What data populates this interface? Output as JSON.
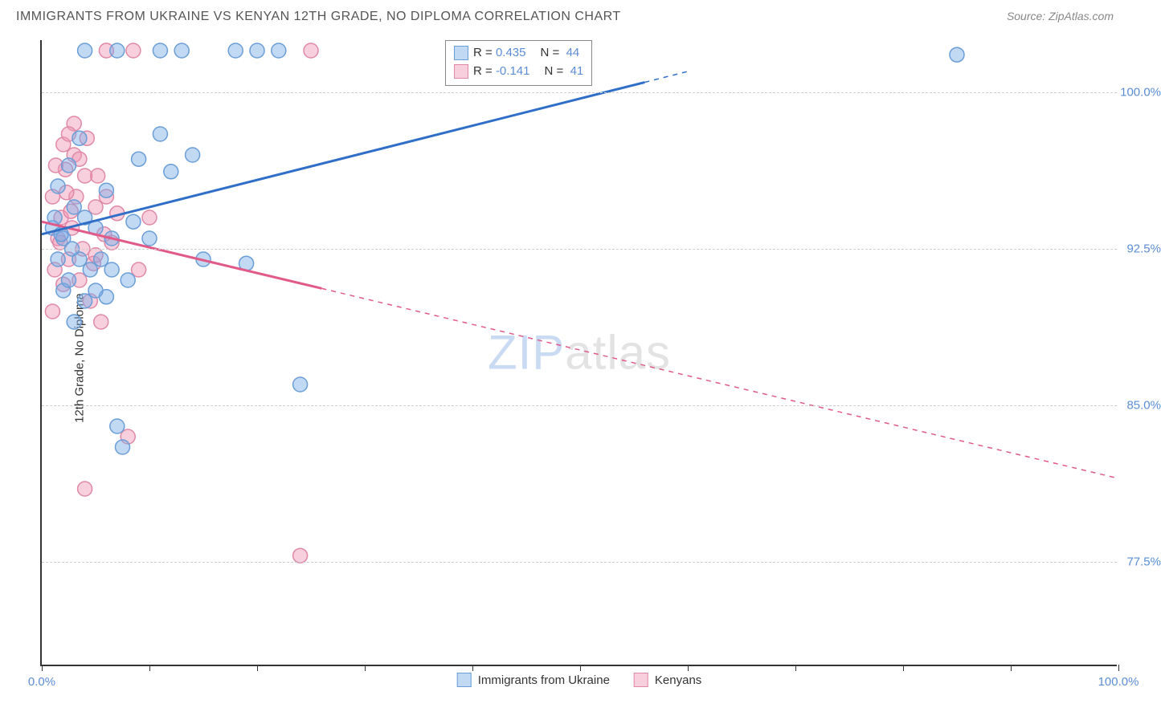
{
  "title": "IMMIGRANTS FROM UKRAINE VS KENYAN 12TH GRADE, NO DIPLOMA CORRELATION CHART",
  "source_label": "Source: ZipAtlas.com",
  "ylabel": "12th Grade, No Diploma",
  "watermark_a": "ZIP",
  "watermark_b": "atlas",
  "colors": {
    "ukraine_fill": "rgba(120,170,230,0.45)",
    "ukraine_stroke": "#6a9ed8",
    "ukraine_line": "#2f6fc7",
    "kenya_fill": "rgba(240,150,180,0.45)",
    "kenya_stroke": "#e088a8",
    "kenya_line": "#e05b88",
    "axis_label": "#5b8dd6",
    "grid": "#cccccc"
  },
  "x_axis": {
    "min": 0,
    "max": 100,
    "ticks": [
      0,
      10,
      20,
      30,
      40,
      50,
      60,
      70,
      80,
      90,
      100
    ],
    "labels": [
      {
        "v": 0,
        "text": "0.0%"
      },
      {
        "v": 100,
        "text": "100.0%"
      }
    ]
  },
  "y_axis": {
    "min": 72.5,
    "max": 102.5,
    "ticks": [
      {
        "v": 77.5,
        "text": "77.5%"
      },
      {
        "v": 85.0,
        "text": "85.0%"
      },
      {
        "v": 92.5,
        "text": "92.5%"
      },
      {
        "v": 100.0,
        "text": "100.0%"
      }
    ]
  },
  "series": {
    "ukraine": {
      "label": "Immigrants from Ukraine",
      "r": "0.435",
      "n": "44",
      "marker_radius": 9,
      "trend": {
        "x1": 0,
        "y1": 93.2,
        "x2": 60,
        "y2": 101.0,
        "solid_to_x": 56
      },
      "points": [
        [
          1.0,
          93.5
        ],
        [
          1.2,
          94.0
        ],
        [
          1.5,
          92.0
        ],
        [
          1.5,
          95.5
        ],
        [
          2.0,
          90.5
        ],
        [
          2.0,
          93.0
        ],
        [
          2.5,
          91.0
        ],
        [
          2.5,
          96.5
        ],
        [
          3.0,
          89.0
        ],
        [
          3.0,
          94.5
        ],
        [
          3.5,
          92.0
        ],
        [
          3.5,
          97.8
        ],
        [
          4.0,
          90.0
        ],
        [
          4.0,
          94.0
        ],
        [
          4.5,
          91.5
        ],
        [
          5.0,
          93.5
        ],
        [
          5.5,
          92.0
        ],
        [
          6.0,
          95.3
        ],
        [
          6.5,
          91.5
        ],
        [
          7.0,
          84.0
        ],
        [
          7.5,
          83.0
        ],
        [
          8.0,
          91.0
        ],
        [
          8.5,
          93.8
        ],
        [
          4.0,
          102.0
        ],
        [
          6.0,
          90.2
        ],
        [
          9.0,
          96.8
        ],
        [
          10.0,
          93.0
        ],
        [
          11.0,
          98.0
        ],
        [
          12.0,
          96.2
        ],
        [
          13.0,
          102.0
        ],
        [
          14.0,
          97.0
        ],
        [
          15.0,
          92.0
        ],
        [
          11.0,
          102.0
        ],
        [
          18.0,
          102.0
        ],
        [
          19.0,
          91.8
        ],
        [
          20.0,
          102.0
        ],
        [
          22.0,
          102.0
        ],
        [
          24.0,
          86.0
        ],
        [
          7.0,
          102.0
        ],
        [
          1.8,
          93.2
        ],
        [
          2.8,
          92.5
        ],
        [
          5.0,
          90.5
        ],
        [
          6.5,
          93.0
        ],
        [
          85.0,
          101.8
        ]
      ]
    },
    "kenya": {
      "label": "Kenyans",
      "r": "-0.141",
      "n": "41",
      "marker_radius": 9,
      "trend": {
        "x1": 0,
        "y1": 93.8,
        "x2": 100,
        "y2": 81.5,
        "solid_to_x": 26
      },
      "points": [
        [
          1.0,
          95.0
        ],
        [
          1.5,
          93.0
        ],
        [
          2.0,
          97.5
        ],
        [
          2.5,
          92.0
        ],
        [
          3.0,
          98.5
        ],
        [
          3.5,
          91.0
        ],
        [
          4.0,
          96.0
        ],
        [
          4.5,
          90.0
        ],
        [
          5.0,
          94.5
        ],
        [
          5.5,
          89.0
        ],
        [
          1.2,
          91.5
        ],
        [
          1.8,
          94.0
        ],
        [
          2.2,
          96.3
        ],
        [
          2.8,
          93.5
        ],
        [
          3.2,
          95.0
        ],
        [
          3.8,
          92.5
        ],
        [
          4.2,
          97.8
        ],
        [
          4.8,
          91.8
        ],
        [
          5.2,
          96.0
        ],
        [
          5.8,
          93.2
        ],
        [
          6.0,
          95.0
        ],
        [
          6.5,
          92.8
        ],
        [
          7.0,
          94.2
        ],
        [
          1.0,
          89.5
        ],
        [
          2.0,
          90.8
        ],
        [
          3.0,
          97.0
        ],
        [
          4.0,
          81.0
        ],
        [
          8.0,
          83.5
        ],
        [
          9.0,
          91.5
        ],
        [
          10.0,
          94.0
        ],
        [
          6.0,
          102.0
        ],
        [
          8.5,
          102.0
        ],
        [
          25.0,
          102.0
        ],
        [
          2.5,
          98.0
        ],
        [
          3.5,
          96.8
        ],
        [
          1.3,
          96.5
        ],
        [
          1.7,
          92.8
        ],
        [
          2.3,
          95.2
        ],
        [
          2.7,
          94.3
        ],
        [
          24.0,
          77.8
        ],
        [
          5.0,
          92.2
        ]
      ]
    }
  },
  "legend_top": [
    {
      "swatch_fill": "rgba(120,170,230,0.45)",
      "swatch_border": "#6a9ed8",
      "r": "0.435",
      "n": "44",
      "val_color": "#5b8dd6"
    },
    {
      "swatch_fill": "rgba(240,150,180,0.45)",
      "swatch_border": "#e088a8",
      "r": "-0.141",
      "n": "41",
      "val_color": "#5b8dd6"
    }
  ],
  "legend_bottom": [
    {
      "swatch_fill": "rgba(120,170,230,0.45)",
      "swatch_border": "#6a9ed8",
      "label": "Immigrants from Ukraine"
    },
    {
      "swatch_fill": "rgba(240,150,180,0.45)",
      "swatch_border": "#e088a8",
      "label": "Kenyans"
    }
  ]
}
